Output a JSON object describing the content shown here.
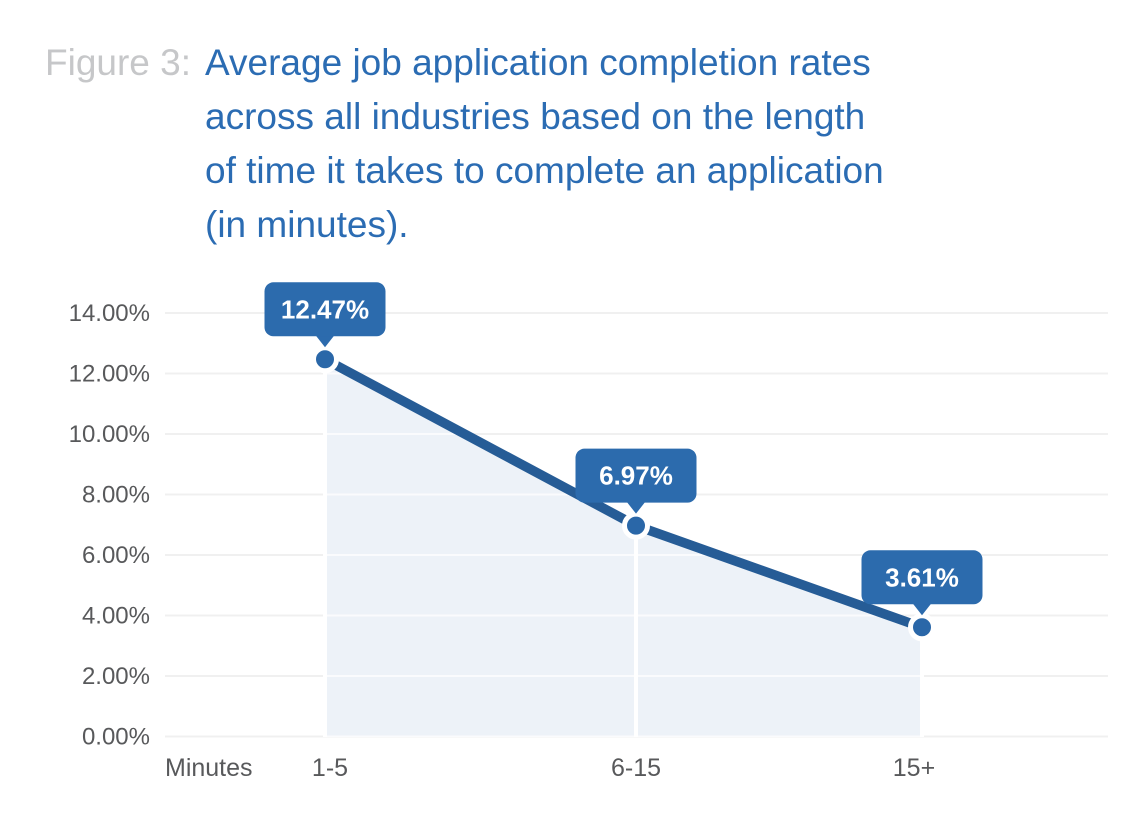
{
  "figure": {
    "label": "Figure 3:",
    "title": "Average job application completion rates\nacross all industries based on the length\nof time it takes to complete an application\n(in minutes)."
  },
  "chart_data": {
    "type": "area",
    "title": "Average job application completion rates across all industries based on the length of time it takes to complete an application (in minutes).",
    "x_axis_title": "Minutes",
    "categories": [
      "1-5",
      "6-15",
      "15+"
    ],
    "values": [
      12.47,
      6.97,
      3.61
    ],
    "value_labels": [
      "12.47%",
      "6.97%",
      "3.61%"
    ],
    "y_ticks": [
      "14.00%",
      "12.00%",
      "10.00%",
      "8.00%",
      "6.00%",
      "4.00%",
      "2.00%",
      "0.00%"
    ],
    "ylim": [
      0,
      14
    ],
    "y_tick_step": 2,
    "grid": "horizontal",
    "legend": "none",
    "marker_style": "filled-circle-white-ring",
    "data_label_style": "blue-callout-tooltip"
  },
  "colors": {
    "title_blue": "#2B6CB3",
    "figure_label_gray": "#C6C7C9",
    "line": "#265C96",
    "marker_fill": "#2A67A8",
    "marker_ring": "#FFFFFF",
    "tooltip_bg": "#2C6BAD",
    "tooltip_text": "#FFFFFF",
    "area_fill": "#EDF2F8",
    "gridline": "#F0F0F0",
    "axis_text": "#58595B",
    "background": "#FFFFFF"
  }
}
